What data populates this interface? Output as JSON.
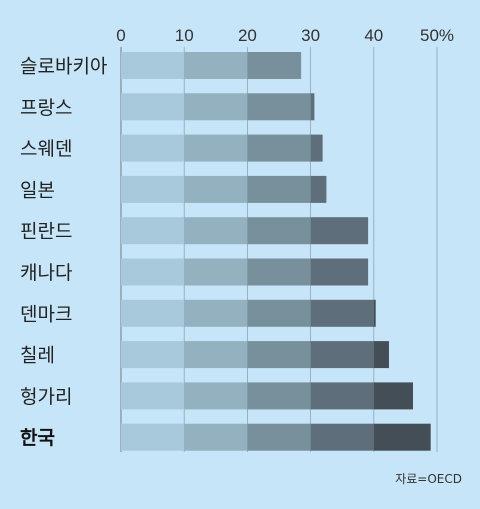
{
  "chart_data": {
    "type": "bar",
    "orientation": "horizontal",
    "categories": [
      "슬로바키아",
      "프랑스",
      "스웨덴",
      "일본",
      "핀란드",
      "캐나다",
      "덴마크",
      "칠레",
      "헝가리",
      "한국"
    ],
    "values": [
      28.5,
      30.6,
      31.9,
      32.5,
      39.1,
      39.1,
      40.3,
      42.4,
      46.2,
      49.0
    ],
    "highlight": "한국",
    "xticks": [
      "0",
      "10",
      "20",
      "30",
      "40",
      "50%"
    ],
    "xlim": [
      0,
      50
    ],
    "grid": true,
    "band_colors": [
      "#a8c9dc",
      "#93b1be",
      "#788f9c",
      "#5e6e7a",
      "#434e56"
    ]
  },
  "source": "자료=OECD"
}
